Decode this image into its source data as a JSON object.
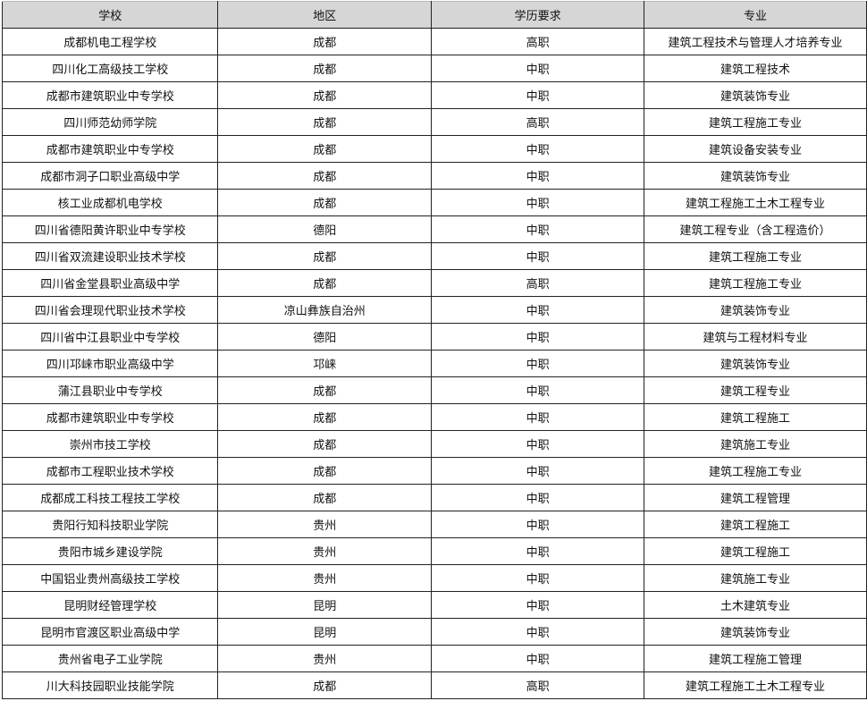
{
  "header": {
    "school": "学校",
    "region": "地区",
    "education": "学历要求",
    "major": "专业"
  },
  "rows": [
    {
      "school": "成都机电工程学校",
      "region": "成都",
      "education": "高职",
      "major": "建筑工程技术与管理人才培养专业"
    },
    {
      "school": "四川化工高级技工学校",
      "region": "成都",
      "education": "中职",
      "major": "建筑工程技术"
    },
    {
      "school": "成都市建筑职业中专学校",
      "region": "成都",
      "education": "中职",
      "major": "建筑装饰专业"
    },
    {
      "school": "四川师范幼师学院",
      "region": "成都",
      "education": "高职",
      "major": "建筑工程施工专业"
    },
    {
      "school": "成都市建筑职业中专学校",
      "region": "成都",
      "education": "中职",
      "major": "建筑设备安装专业"
    },
    {
      "school": "成都市洞子口职业高级中学",
      "region": "成都",
      "education": "中职",
      "major": "建筑装饰专业"
    },
    {
      "school": "核工业成都机电学校",
      "region": "成都",
      "education": "中职",
      "major": "建筑工程施工土木工程专业"
    },
    {
      "school": "四川省德阳黄许职业中专学校",
      "region": "德阳",
      "education": "中职",
      "major": "建筑工程专业（含工程造价）"
    },
    {
      "school": "四川省双流建设职业技术学校",
      "region": "成都",
      "education": "中职",
      "major": "建筑工程施工专业"
    },
    {
      "school": "四川省金堂县职业高级中学",
      "region": "成都",
      "education": "高职",
      "major": "建筑工程施工专业"
    },
    {
      "school": "四川省会理现代职业技术学校",
      "region": "凉山彝族自治州",
      "education": "中职",
      "major": "建筑装饰专业"
    },
    {
      "school": "四川省中江县职业中专学校",
      "region": "德阳",
      "education": "中职",
      "major": "建筑与工程材料专业"
    },
    {
      "school": "四川邛崃市职业高级中学",
      "region": "邛崃",
      "education": "中职",
      "major": "建筑装饰专业"
    },
    {
      "school": "蒲江县职业中专学校",
      "region": "成都",
      "education": "中职",
      "major": "建筑工程专业"
    },
    {
      "school": "成都市建筑职业中专学校",
      "region": "成都",
      "education": "中职",
      "major": "建筑工程施工"
    },
    {
      "school": "崇州市技工学校",
      "region": "成都",
      "education": "中职",
      "major": "建筑施工专业"
    },
    {
      "school": "成都市工程职业技术学校",
      "region": "成都",
      "education": "中职",
      "major": "建筑工程施工专业"
    },
    {
      "school": "成都成工科技工程技工学校",
      "region": "成都",
      "education": "中职",
      "major": "建筑工程管理"
    },
    {
      "school": "贵阳行知科技职业学院",
      "region": "贵州",
      "education": "中职",
      "major": "建筑工程施工"
    },
    {
      "school": "贵阳市城乡建设学院",
      "region": "贵州",
      "education": "中职",
      "major": "建筑工程施工"
    },
    {
      "school": "中国铝业贵州高级技工学校",
      "region": "贵州",
      "education": "中职",
      "major": "建筑施工专业"
    },
    {
      "school": "昆明财经管理学校",
      "region": "昆明",
      "education": "中职",
      "major": "土木建筑专业"
    },
    {
      "school": "昆明市官渡区职业高级中学",
      "region": "昆明",
      "education": "中职",
      "major": "建筑装饰专业"
    },
    {
      "school": "贵州省电子工业学院",
      "region": "贵州",
      "education": "中职",
      "major": "建筑工程施工管理"
    },
    {
      "school": "川大科技园职业技能学院",
      "region": "成都",
      "education": "高职",
      "major": "建筑工程施工土木工程专业"
    }
  ]
}
